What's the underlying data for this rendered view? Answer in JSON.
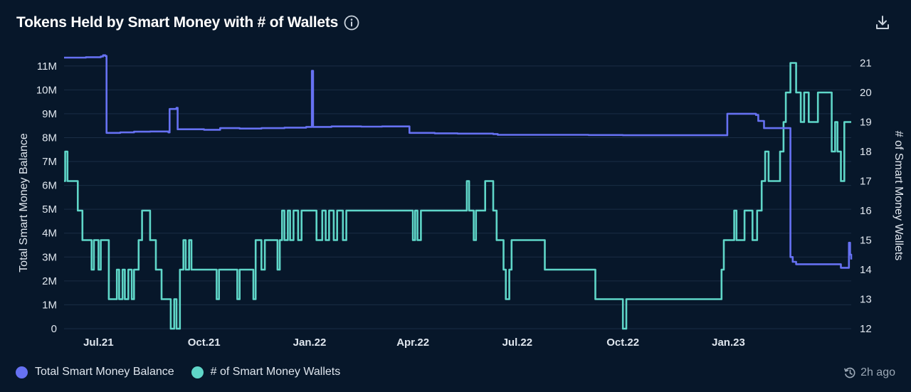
{
  "header": {
    "title": "Tokens Held by Smart Money with # of Wallets",
    "info_icon": "info-icon",
    "download_icon": "download-icon"
  },
  "footer": {
    "updated": "2h ago",
    "clock_icon": "clock-refresh-icon"
  },
  "colors": {
    "background": "#07172a",
    "balance": "#6671f2",
    "wallets": "#5fd6c8",
    "grid": "#1a2d45",
    "axis_text": "#dfe6ee"
  },
  "chart_data": {
    "type": "line",
    "title": "Tokens Held by Smart Money with # of Wallets",
    "x_ticks": [
      "Jul.21",
      "Oct.21",
      "Jan.22",
      "Apr.22",
      "Jul.22",
      "Oct.22",
      "Jan.23"
    ],
    "x_tick_dates": [
      "2021-07-01",
      "2021-10-01",
      "2022-01-01",
      "2022-04-01",
      "2022-07-01",
      "2022-10-01",
      "2023-01-01"
    ],
    "x_range": [
      "2021-06-01",
      "2023-04-18"
    ],
    "y_left": {
      "label": "Total Smart Money Balance",
      "ticks": [
        "0",
        "1M",
        "2M",
        "3M",
        "4M",
        "5M",
        "6M",
        "7M",
        "8M",
        "9M",
        "10M",
        "11M"
      ],
      "range": [
        0,
        11500000
      ]
    },
    "y_right": {
      "label": "# of Smart Money Wallets",
      "ticks": [
        "12",
        "13",
        "14",
        "15",
        "16",
        "17",
        "18",
        "19",
        "20",
        "21"
      ],
      "range": [
        12,
        21.3
      ]
    },
    "legend": [
      "Total Smart Money Balance",
      "# of Smart Money Wallets"
    ],
    "series": [
      {
        "name": "Total Smart Money Balance",
        "axis": "left",
        "points": [
          [
            "2021-06-01",
            11350000
          ],
          [
            "2021-06-20",
            11370000
          ],
          [
            "2021-07-03",
            11400000
          ],
          [
            "2021-07-05",
            11450000
          ],
          [
            "2021-07-07",
            11420000
          ],
          [
            "2021-07-08",
            8200000
          ],
          [
            "2021-07-20",
            8220000
          ],
          [
            "2021-08-01",
            8250000
          ],
          [
            "2021-08-15",
            8260000
          ],
          [
            "2021-08-31",
            8220000
          ],
          [
            "2021-09-01",
            9200000
          ],
          [
            "2021-09-07",
            9250000
          ],
          [
            "2021-09-08",
            8350000
          ],
          [
            "2021-10-01",
            8330000
          ],
          [
            "2021-10-15",
            8400000
          ],
          [
            "2021-11-01",
            8380000
          ],
          [
            "2021-11-20",
            8400000
          ],
          [
            "2021-12-10",
            8420000
          ],
          [
            "2021-12-29",
            8450000
          ],
          [
            "2022-01-02",
            8450000
          ],
          [
            "2022-01-03",
            10800000
          ],
          [
            "2022-01-04",
            8450000
          ],
          [
            "2022-01-20",
            8470000
          ],
          [
            "2022-02-15",
            8460000
          ],
          [
            "2022-03-05",
            8470000
          ],
          [
            "2022-03-28",
            8470000
          ],
          [
            "2022-03-29",
            8200000
          ],
          [
            "2022-04-20",
            8180000
          ],
          [
            "2022-05-10",
            8170000
          ],
          [
            "2022-06-10",
            8150000
          ],
          [
            "2022-06-14",
            8120000
          ],
          [
            "2022-08-01",
            8120000
          ],
          [
            "2022-09-01",
            8110000
          ],
          [
            "2022-10-01",
            8100000
          ],
          [
            "2022-11-01",
            8100000
          ],
          [
            "2022-12-27",
            8100000
          ],
          [
            "2022-12-31",
            9000000
          ],
          [
            "2023-01-20",
            9000000
          ],
          [
            "2023-01-25",
            8950000
          ],
          [
            "2023-01-27",
            8700000
          ],
          [
            "2023-02-01",
            8400000
          ],
          [
            "2023-02-20",
            8400000
          ],
          [
            "2023-02-24",
            3000000
          ],
          [
            "2023-02-26",
            2800000
          ],
          [
            "2023-03-01",
            2700000
          ],
          [
            "2023-03-20",
            2700000
          ],
          [
            "2023-04-08",
            2700000
          ],
          [
            "2023-04-09",
            2550000
          ],
          [
            "2023-04-15",
            2550000
          ],
          [
            "2023-04-16",
            3600000
          ],
          [
            "2023-04-17",
            3100000
          ],
          [
            "2023-04-18",
            2900000
          ]
        ]
      },
      {
        "name": "# of Smart Money Wallets",
        "axis": "right",
        "points": [
          [
            "2021-06-01",
            17
          ],
          [
            "2021-06-02",
            18
          ],
          [
            "2021-06-04",
            17
          ],
          [
            "2021-06-13",
            16
          ],
          [
            "2021-06-17",
            15
          ],
          [
            "2021-06-25",
            14
          ],
          [
            "2021-06-27",
            15
          ],
          [
            "2021-07-01",
            14
          ],
          [
            "2021-07-03",
            15
          ],
          [
            "2021-07-07",
            15
          ],
          [
            "2021-07-10",
            13
          ],
          [
            "2021-07-17",
            14
          ],
          [
            "2021-07-19",
            13
          ],
          [
            "2021-07-22",
            14
          ],
          [
            "2021-07-24",
            13
          ],
          [
            "2021-07-27",
            14
          ],
          [
            "2021-07-30",
            13
          ],
          [
            "2021-08-01",
            14
          ],
          [
            "2021-08-05",
            15
          ],
          [
            "2021-08-08",
            16
          ],
          [
            "2021-08-15",
            15
          ],
          [
            "2021-08-20",
            14
          ],
          [
            "2021-08-25",
            13
          ],
          [
            "2021-09-02",
            12
          ],
          [
            "2021-09-05",
            13
          ],
          [
            "2021-09-07",
            12
          ],
          [
            "2021-09-10",
            14
          ],
          [
            "2021-09-13",
            15
          ],
          [
            "2021-09-15",
            14
          ],
          [
            "2021-09-18",
            15
          ],
          [
            "2021-09-20",
            14
          ],
          [
            "2021-10-10",
            14
          ],
          [
            "2021-10-12",
            13
          ],
          [
            "2021-10-14",
            14
          ],
          [
            "2021-10-30",
            13
          ],
          [
            "2021-11-01",
            14
          ],
          [
            "2021-11-13",
            13
          ],
          [
            "2021-11-15",
            15
          ],
          [
            "2021-11-20",
            14
          ],
          [
            "2021-11-23",
            15
          ],
          [
            "2021-12-04",
            14
          ],
          [
            "2021-12-06",
            15
          ],
          [
            "2021-12-08",
            16
          ],
          [
            "2021-12-10",
            15
          ],
          [
            "2021-12-13",
            16
          ],
          [
            "2021-12-15",
            15
          ],
          [
            "2021-12-18",
            16
          ],
          [
            "2021-12-22",
            15
          ],
          [
            "2021-12-25",
            16
          ],
          [
            "2022-01-05",
            16
          ],
          [
            "2022-01-07",
            15
          ],
          [
            "2022-01-12",
            16
          ],
          [
            "2022-01-15",
            15
          ],
          [
            "2022-01-18",
            16
          ],
          [
            "2022-01-22",
            15
          ],
          [
            "2022-01-25",
            16
          ],
          [
            "2022-01-30",
            15
          ],
          [
            "2022-02-02",
            16
          ],
          [
            "2022-03-25",
            16
          ],
          [
            "2022-04-01",
            15
          ],
          [
            "2022-04-03",
            16
          ],
          [
            "2022-04-05",
            15
          ],
          [
            "2022-04-08",
            16
          ],
          [
            "2022-05-15",
            16
          ],
          [
            "2022-05-18",
            17
          ],
          [
            "2022-05-20",
            16
          ],
          [
            "2022-05-24",
            15
          ],
          [
            "2022-05-26",
            16
          ],
          [
            "2022-06-03",
            17
          ],
          [
            "2022-06-10",
            16
          ],
          [
            "2022-06-13",
            15
          ],
          [
            "2022-06-19",
            14
          ],
          [
            "2022-06-21",
            13
          ],
          [
            "2022-06-24",
            14
          ],
          [
            "2022-06-26",
            15
          ],
          [
            "2022-07-25",
            14
          ],
          [
            "2022-09-07",
            13
          ],
          [
            "2022-10-01",
            12
          ],
          [
            "2022-10-04",
            13
          ],
          [
            "2022-12-26",
            14
          ],
          [
            "2022-12-28",
            15
          ],
          [
            "2023-01-06",
            16
          ],
          [
            "2023-01-08",
            15
          ],
          [
            "2023-01-12",
            15
          ],
          [
            "2023-01-15",
            16
          ],
          [
            "2023-01-22",
            15
          ],
          [
            "2023-01-26",
            16
          ],
          [
            "2023-01-30",
            17
          ],
          [
            "2023-02-02",
            18
          ],
          [
            "2023-02-05",
            17
          ],
          [
            "2023-02-15",
            18
          ],
          [
            "2023-02-18",
            19
          ],
          [
            "2023-02-20",
            20
          ],
          [
            "2023-02-24",
            21
          ],
          [
            "2023-03-01",
            20
          ],
          [
            "2023-03-05",
            19
          ],
          [
            "2023-03-08",
            20
          ],
          [
            "2023-03-12",
            19
          ],
          [
            "2023-03-20",
            20
          ],
          [
            "2023-04-01",
            18
          ],
          [
            "2023-04-04",
            19
          ],
          [
            "2023-04-06",
            18
          ],
          [
            "2023-04-09",
            17
          ],
          [
            "2023-04-12",
            19
          ],
          [
            "2023-04-18",
            19
          ]
        ]
      }
    ]
  }
}
